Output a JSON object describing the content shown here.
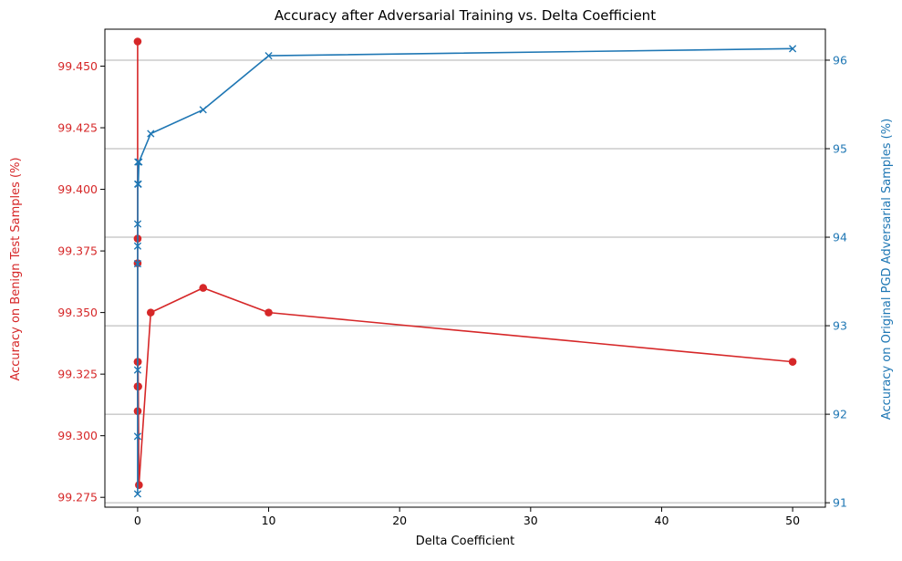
{
  "chart_data": {
    "type": "line",
    "title": "Accuracy after Adversarial Training vs. Delta Coefficient",
    "xlabel": "Delta Coefficient",
    "ylabel_left": "Accuracy on Benign Test Samples (%)",
    "ylabel_right": "Accuracy on Original PGD Adversarial Samples (%)",
    "xlim": [
      -2.5,
      52.5
    ],
    "ylim_left": [
      99.271,
      99.465
    ],
    "ylim_right": [
      90.95,
      96.35
    ],
    "x_ticks": [
      0,
      10,
      20,
      30,
      40,
      50
    ],
    "y_ticks_left": [
      99.275,
      99.3,
      99.325,
      99.35,
      99.375,
      99.4,
      99.425,
      99.45
    ],
    "y_ticks_left_labels": [
      "99.275",
      "99.300",
      "99.325",
      "99.350",
      "99.375",
      "99.400",
      "99.425",
      "99.450"
    ],
    "y_ticks_right": [
      91,
      92,
      93,
      94,
      95,
      96
    ],
    "grid": "right-axis horizontal",
    "colors": {
      "left": "#d62728",
      "right": "#1f77b4"
    },
    "series": [
      {
        "axis": "left",
        "marker": "circle",
        "color": "#d62728",
        "x": [
          0.0001,
          0.0002,
          0.0005,
          0.001,
          0.002,
          0.005,
          0.01,
          0.02,
          0.05,
          0.1,
          1,
          5,
          10,
          50
        ],
        "values": [
          99.46,
          99.38,
          99.37,
          99.33,
          99.32,
          99.31,
          99.32,
          99.33,
          99.32,
          99.28,
          99.35,
          99.36,
          99.35,
          99.33
        ]
      },
      {
        "axis": "right",
        "marker": "x",
        "color": "#1f77b4",
        "x": [
          0.0001,
          0.0002,
          0.0005,
          0.001,
          0.002,
          0.005,
          0.01,
          0.02,
          0.05,
          0.1,
          1,
          5,
          10,
          50
        ],
        "values": [
          91.1,
          91.75,
          92.5,
          93.7,
          93.9,
          94.15,
          94.6,
          94.85,
          94.6,
          94.85,
          95.17,
          95.44,
          96.05,
          96.13
        ]
      }
    ]
  }
}
